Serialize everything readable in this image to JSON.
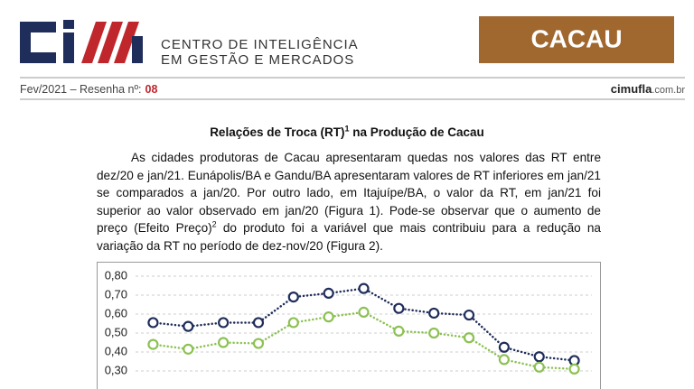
{
  "header": {
    "org_line1": "CENTRO DE INTELIGÊNCIA",
    "org_line2": "EM GESTÃO E MERCADOS",
    "product": "CACAU",
    "edition_prefix": "Fev/2021 – Resenha nº:",
    "edition_number": "08",
    "site_bold": "cimufla",
    "site_rest": ".com.br"
  },
  "article": {
    "title": "Relações de Troca (RT)",
    "title_sup": "1",
    "title_rest": " na Produção de Cacau",
    "paragraph_1": "As cidades produtoras de Cacau apresentaram quedas nos valores das RT entre dez/20 e jan/21. Eunápolis/BA e Gandu/BA apresentaram valores de RT inferiores em jan/21 se comparados a jan/20. Por outro lado, em Itajuípe/BA, o valor da RT, em jan/21 foi superior ao valor observado em jan/20 (Figura 1). Pode-se observar que o aumento de preço (Efeito Preço)",
    "paragraph_sup": "2",
    "paragraph_2": " do produto foi a variável que mais contribuiu para a redução na variação da RT no período de dez-nov/20 (Figura 2)."
  },
  "chart_data": {
    "type": "line",
    "ylim": [
      0.2,
      0.8
    ],
    "yticks": [
      {
        "value": 0.3,
        "label": "0,30"
      },
      {
        "value": 0.4,
        "label": "0,40"
      },
      {
        "value": 0.5,
        "label": "0,50"
      },
      {
        "value": 0.6,
        "label": "0,60"
      },
      {
        "value": 0.7,
        "label": "0,70"
      },
      {
        "value": 0.8,
        "label": "0,80"
      }
    ],
    "grid": true,
    "series": [
      {
        "color": "#1f2d5a",
        "values": [
          0.555,
          0.535,
          0.555,
          0.555,
          0.69,
          0.71,
          0.735,
          0.63,
          0.605,
          0.595,
          0.425,
          0.375,
          0.355
        ]
      },
      {
        "color": "#8cc152",
        "values": [
          0.44,
          0.415,
          0.45,
          0.445,
          0.555,
          0.585,
          0.61,
          0.51,
          0.5,
          0.475,
          0.36,
          0.32,
          0.31
        ]
      }
    ]
  }
}
